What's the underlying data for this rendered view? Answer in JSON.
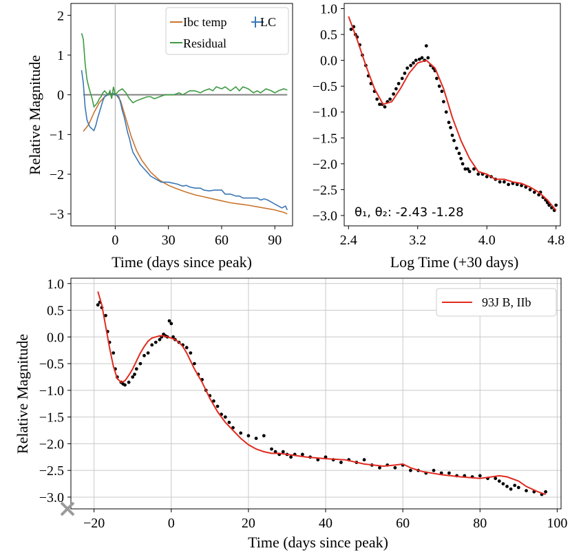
{
  "chart_data": [
    {
      "type": "line",
      "id": "panel-a",
      "xlabel": "Time (days since peak)",
      "ylabel": "Relative Magnitude",
      "xlim": [
        -25,
        100
      ],
      "ylim": [
        -3.3,
        2.3
      ],
      "xticks": [
        0,
        30,
        60,
        90
      ],
      "yticks": [
        2,
        1,
        0,
        -1,
        -2,
        -3
      ],
      "reference_hline": 0,
      "reference_vline": 0,
      "legend": [
        "Ibc temp",
        "LC",
        "Residual"
      ],
      "colors": {
        "ibc": "#c9742c",
        "lc": "#3a76b5",
        "residual": "#3c9a42",
        "ref": "#808080"
      },
      "series": [
        {
          "name": "Ibc temp",
          "x": [
            -18,
            -15,
            -12,
            -9,
            -6,
            -3,
            0,
            3,
            6,
            9,
            12,
            15,
            20,
            25,
            30,
            35,
            40,
            45,
            50,
            55,
            60,
            65,
            70,
            75,
            80,
            85,
            90,
            95,
            97
          ],
          "y": [
            -0.92,
            -0.75,
            -0.45,
            -0.2,
            -0.05,
            0.03,
            0.03,
            -0.15,
            -0.6,
            -1.05,
            -1.4,
            -1.65,
            -1.95,
            -2.15,
            -2.28,
            -2.37,
            -2.45,
            -2.52,
            -2.57,
            -2.62,
            -2.67,
            -2.72,
            -2.75,
            -2.78,
            -2.82,
            -2.86,
            -2.9,
            -2.96,
            -3.0
          ]
        },
        {
          "name": "LC",
          "x": [
            -19,
            -18,
            -17,
            -16,
            -15,
            -14,
            -13,
            -12,
            -11,
            -10,
            -9,
            -8,
            -7,
            -6,
            -5,
            -4,
            -3,
            -2,
            -1,
            0,
            1,
            2,
            3,
            4,
            5,
            6,
            7,
            8,
            9,
            10,
            12,
            14,
            16,
            18,
            20,
            22,
            24,
            26,
            28,
            30,
            32,
            35,
            38,
            40,
            42,
            45,
            48,
            50,
            53,
            56,
            58,
            60,
            62,
            65,
            68,
            70,
            72,
            75,
            78,
            80,
            82,
            84,
            86,
            88,
            90,
            92,
            94,
            96,
            97
          ],
          "y": [
            0.62,
            0.3,
            -0.3,
            -0.62,
            -0.75,
            -0.82,
            -0.86,
            -0.9,
            -0.78,
            -0.6,
            -0.45,
            -0.3,
            -0.15,
            -0.05,
            -0.02,
            0.0,
            0.05,
            0.0,
            0.03,
            0.0,
            -0.02,
            -0.05,
            -0.2,
            -0.4,
            -0.55,
            -0.75,
            -0.95,
            -1.1,
            -1.3,
            -1.45,
            -1.6,
            -1.75,
            -1.85,
            -1.95,
            -2.05,
            -2.1,
            -2.15,
            -2.2,
            -2.2,
            -2.2,
            -2.22,
            -2.25,
            -2.3,
            -2.28,
            -2.32,
            -2.35,
            -2.35,
            -2.4,
            -2.42,
            -2.4,
            -2.4,
            -2.4,
            -2.5,
            -2.5,
            -2.55,
            -2.55,
            -2.6,
            -2.6,
            -2.6,
            -2.6,
            -2.65,
            -2.62,
            -2.65,
            -2.7,
            -2.75,
            -2.8,
            -2.85,
            -2.8,
            -2.9
          ]
        },
        {
          "name": "Residual",
          "x": [
            -19,
            -18,
            -17,
            -16,
            -15,
            -14,
            -13,
            -12,
            -11,
            -10,
            -9,
            -8,
            -7,
            -6,
            -5,
            -4,
            -3,
            -2,
            -1,
            0,
            2,
            4,
            6,
            8,
            10,
            12,
            15,
            18,
            20,
            22,
            25,
            28,
            30,
            33,
            36,
            38,
            40,
            42,
            45,
            48,
            50,
            53,
            55,
            57,
            60,
            62,
            65,
            68,
            70,
            72,
            75,
            78,
            80,
            82,
            85,
            88,
            90,
            92,
            95,
            97
          ],
          "y": [
            1.55,
            1.4,
            0.8,
            0.4,
            0.2,
            0.05,
            -0.1,
            -0.3,
            -0.25,
            -0.2,
            -0.1,
            -0.05,
            0.05,
            0.1,
            0.05,
            0.0,
            0.1,
            -0.1,
            0.2,
            0.0,
            0.1,
            0.15,
            0.05,
            -0.1,
            -0.2,
            -0.15,
            -0.1,
            -0.05,
            -0.05,
            -0.1,
            -0.05,
            0.0,
            0.0,
            0.0,
            0.05,
            0.0,
            0.05,
            0.1,
            0.1,
            0.05,
            0.1,
            0.15,
            0.1,
            0.2,
            0.15,
            0.2,
            0.1,
            0.2,
            0.1,
            0.2,
            0.15,
            0.05,
            0.1,
            0.05,
            0.15,
            0.1,
            0.05,
            0.1,
            0.15,
            0.12
          ]
        }
      ]
    },
    {
      "type": "scatter",
      "id": "panel-b",
      "xlabel": "Log Time (+30 days)",
      "ylabel": "",
      "xlim": [
        2.35,
        4.85
      ],
      "ylim": [
        -3.2,
        1.1
      ],
      "xticks": [
        2.4,
        3.2,
        4.0,
        4.8
      ],
      "yticks": [
        1.0,
        0.5,
        0.0,
        -0.5,
        -1.0,
        -1.5,
        -2.0,
        -2.5,
        -3.0
      ],
      "annotation": "θ₁, θ₂: -2.43 -1.28",
      "colors": {
        "fit": "#e02a1f",
        "points": "#000000"
      },
      "fit": {
        "x": [
          2.4,
          2.5,
          2.6,
          2.7,
          2.8,
          2.9,
          3.0,
          3.1,
          3.2,
          3.3,
          3.4,
          3.5,
          3.6,
          3.7,
          3.8,
          3.9,
          4.0,
          4.1,
          4.2,
          4.3,
          4.4,
          4.5,
          4.6,
          4.7,
          4.8
        ],
        "y": [
          0.85,
          0.4,
          -0.1,
          -0.55,
          -0.85,
          -0.8,
          -0.55,
          -0.25,
          -0.05,
          0.0,
          -0.15,
          -0.55,
          -1.1,
          -1.55,
          -1.9,
          -2.15,
          -2.2,
          -2.3,
          -2.3,
          -2.35,
          -2.38,
          -2.45,
          -2.55,
          -2.7,
          -2.9
        ]
      },
      "points": {
        "x": [
          2.43,
          2.46,
          2.48,
          2.5,
          2.53,
          2.56,
          2.6,
          2.63,
          2.66,
          2.7,
          2.73,
          2.76,
          2.79,
          2.82,
          2.85,
          2.88,
          2.92,
          2.95,
          2.98,
          3.02,
          3.05,
          3.08,
          3.12,
          3.15,
          3.18,
          3.22,
          3.25,
          3.28,
          3.3,
          3.32,
          3.35,
          3.38,
          3.4,
          3.42,
          3.45,
          3.48,
          3.5,
          3.53,
          3.56,
          3.58,
          3.6,
          3.62,
          3.65,
          3.68,
          3.7,
          3.72,
          3.75,
          3.78,
          3.8,
          3.85,
          3.9,
          3.95,
          4.0,
          4.05,
          4.1,
          4.15,
          4.2,
          4.25,
          4.3,
          4.35,
          4.4,
          4.45,
          4.5,
          4.55,
          4.6,
          4.62,
          4.65,
          4.68,
          4.7,
          4.72,
          4.75,
          4.78,
          4.8
        ],
        "y": [
          0.6,
          0.65,
          0.5,
          0.45,
          0.3,
          0.1,
          -0.1,
          -0.3,
          -0.45,
          -0.6,
          -0.75,
          -0.85,
          -0.85,
          -0.9,
          -0.8,
          -0.75,
          -0.65,
          -0.55,
          -0.45,
          -0.35,
          -0.25,
          -0.15,
          -0.1,
          -0.05,
          0.0,
          0.02,
          0.05,
          0.0,
          0.28,
          0.05,
          -0.1,
          -0.15,
          -0.2,
          -0.35,
          -0.5,
          -0.6,
          -0.8,
          -1.0,
          -1.2,
          -1.3,
          -1.45,
          -1.55,
          -1.7,
          -1.8,
          -1.9,
          -2.0,
          -2.1,
          -2.1,
          -2.15,
          -2.1,
          -2.2,
          -2.2,
          -2.25,
          -2.25,
          -2.3,
          -2.35,
          -2.35,
          -2.4,
          -2.38,
          -2.4,
          -2.42,
          -2.45,
          -2.5,
          -2.55,
          -2.6,
          -2.55,
          -2.65,
          -2.7,
          -2.75,
          -2.8,
          -2.85,
          -2.9,
          -2.8
        ]
      }
    },
    {
      "type": "scatter",
      "id": "panel-c",
      "xlabel": "Time (days since peak)",
      "ylabel": "Relative Magnitude",
      "xlim": [
        -26,
        101
      ],
      "ylim": [
        -3.22,
        1.1
      ],
      "xticks": [
        -20,
        0,
        20,
        40,
        60,
        80,
        100
      ],
      "yticks": [
        1.0,
        0.5,
        0.0,
        -0.5,
        -1.0,
        -1.5,
        -2.0,
        -2.5,
        -3.0
      ],
      "grid": true,
      "legend": [
        "93J B, IIb"
      ],
      "legend_position": "top-right",
      "marker_at_origin": "x",
      "colors": {
        "fit": "#e02a1f",
        "points": "#000000",
        "grid": "#c8c8c8",
        "cross": "#9a9a9a"
      },
      "fit": {
        "x": [
          -19,
          -18,
          -17,
          -16,
          -15,
          -14,
          -13,
          -12,
          -11,
          -10,
          -9,
          -8,
          -7,
          -6,
          -5,
          -4,
          -3,
          -2,
          -1,
          0,
          1,
          2,
          3,
          4,
          5,
          6,
          8,
          10,
          12,
          14,
          16,
          18,
          20,
          22,
          24,
          26,
          28,
          30,
          35,
          40,
          45,
          50,
          55,
          58,
          60,
          62,
          65,
          70,
          75,
          80,
          83,
          85,
          87,
          90,
          92,
          95,
          97
        ],
        "y": [
          0.85,
          0.6,
          0.2,
          -0.2,
          -0.55,
          -0.78,
          -0.85,
          -0.82,
          -0.72,
          -0.6,
          -0.45,
          -0.3,
          -0.18,
          -0.08,
          -0.02,
          0.0,
          0.02,
          0.02,
          0.0,
          -0.02,
          -0.05,
          -0.1,
          -0.18,
          -0.3,
          -0.45,
          -0.6,
          -0.85,
          -1.15,
          -1.4,
          -1.6,
          -1.75,
          -1.9,
          -2.02,
          -2.1,
          -2.15,
          -2.18,
          -2.18,
          -2.2,
          -2.25,
          -2.28,
          -2.3,
          -2.38,
          -2.42,
          -2.4,
          -2.38,
          -2.45,
          -2.52,
          -2.58,
          -2.62,
          -2.65,
          -2.62,
          -2.6,
          -2.62,
          -2.7,
          -2.8,
          -2.9,
          -2.95
        ]
      },
      "points": {
        "x": [
          -19,
          -18.5,
          -18,
          -17,
          -16.5,
          -16,
          -15,
          -14.5,
          -14,
          -13,
          -12.5,
          -12,
          -11,
          -10,
          -9.5,
          -9,
          -8,
          -7,
          -6,
          -5,
          -4,
          -3,
          -2.5,
          -2,
          -1.5,
          -1,
          -0.5,
          0,
          0.5,
          1,
          2,
          3,
          4,
          5,
          6,
          7,
          8,
          9,
          10,
          11,
          12,
          13,
          14,
          15,
          16,
          18,
          20,
          22,
          24,
          26,
          27,
          28,
          29,
          30,
          31,
          32,
          34,
          36,
          38,
          40,
          42,
          44,
          46,
          48,
          50,
          52,
          54,
          56,
          58,
          60,
          62,
          64,
          66,
          68,
          70,
          72,
          74,
          76,
          78,
          80,
          82,
          84,
          85,
          86,
          87,
          88,
          89,
          90,
          92,
          94,
          96,
          97
        ],
        "y": [
          0.6,
          0.65,
          0.55,
          0.4,
          0.1,
          -0.1,
          -0.3,
          -0.6,
          -0.75,
          -0.85,
          -0.88,
          -0.9,
          -0.85,
          -0.75,
          -0.7,
          -0.6,
          -0.5,
          -0.35,
          -0.3,
          -0.15,
          -0.1,
          -0.05,
          0.0,
          0.05,
          0.02,
          0.0,
          0.3,
          0.25,
          0.0,
          -0.05,
          -0.1,
          -0.15,
          -0.2,
          -0.3,
          -0.5,
          -0.7,
          -0.8,
          -1.0,
          -1.1,
          -1.2,
          -1.3,
          -1.45,
          -1.5,
          -1.6,
          -1.7,
          -1.8,
          -1.85,
          -1.9,
          -1.85,
          -2.1,
          -2.15,
          -2.2,
          -2.15,
          -2.2,
          -2.25,
          -2.2,
          -2.2,
          -2.25,
          -2.3,
          -2.25,
          -2.3,
          -2.35,
          -2.3,
          -2.35,
          -2.3,
          -2.4,
          -2.45,
          -2.4,
          -2.45,
          -2.4,
          -2.5,
          -2.5,
          -2.55,
          -2.5,
          -2.55,
          -2.55,
          -2.6,
          -2.6,
          -2.62,
          -2.6,
          -2.65,
          -2.65,
          -2.7,
          -2.75,
          -2.8,
          -2.85,
          -2.78,
          -2.82,
          -2.88,
          -2.9,
          -2.95,
          -2.9
        ]
      }
    }
  ]
}
